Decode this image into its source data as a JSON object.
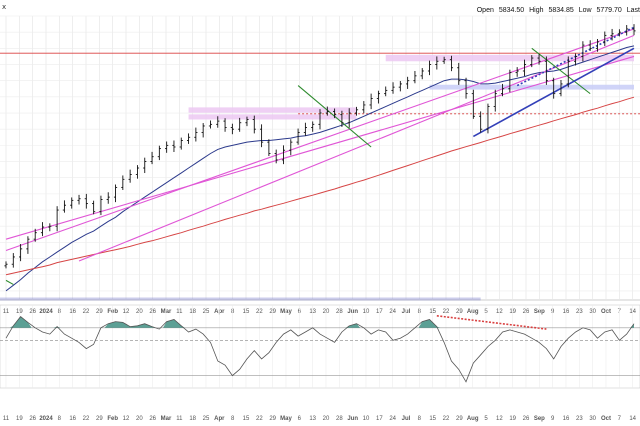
{
  "header": {
    "corner_label": "x",
    "open_label": "Open",
    "open_value": "5834.50",
    "high_label": "High",
    "high_value": "5834.85",
    "low_label": "Low",
    "low_value": "5779.70",
    "last_label": "Last"
  },
  "chart_data": [
    {
      "type": "bar",
      "panel": "price",
      "style": "ohlc",
      "x_range": [
        "2023-11-06",
        "2024-10-10"
      ],
      "y_range": [
        4150,
        5900
      ],
      "grid": true,
      "x_tick_labels": [
        "11",
        "19",
        "26",
        "2024",
        "8",
        "16",
        "22",
        "29",
        "Feb",
        "12",
        "20",
        "26",
        "Mar",
        "11",
        "18",
        "25",
        "Apr",
        "8",
        "15",
        "22",
        "29",
        "May",
        "6",
        "13",
        "20",
        "28",
        "Jun",
        "10",
        "17",
        "24",
        "Jul",
        "8",
        "15",
        "22",
        "29",
        "Aug",
        "5",
        "12",
        "19",
        "26",
        "Sep",
        "9",
        "16",
        "23",
        "30",
        "Oct",
        "7",
        "14"
      ],
      "series": [
        {
          "kind": "price",
          "closes": [
            4365,
            4410,
            4460,
            4520,
            4560,
            4595,
            4600,
            4700,
            4730,
            4760,
            4770,
            4740,
            4690,
            4765,
            4780,
            4840,
            4890,
            4920,
            4960,
            5000,
            5030,
            5080,
            5100,
            5090,
            5130,
            5150,
            5180,
            5220,
            5230,
            5250,
            5210,
            5200,
            5240,
            5260,
            5200,
            5120,
            5050,
            5010,
            5070,
            5120,
            5180,
            5210,
            5230,
            5300,
            5310,
            5290,
            5240,
            5300,
            5320,
            5350,
            5390,
            5420,
            5440,
            5460,
            5480,
            5500,
            5530,
            5560,
            5600,
            5620,
            5630,
            5580,
            5500,
            5420,
            5280,
            5200,
            5340,
            5420,
            5450,
            5550,
            5560,
            5600,
            5640,
            5620,
            5500,
            5420,
            5480,
            5620,
            5650,
            5720,
            5700,
            5740,
            5780,
            5790,
            5800,
            5820,
            5808
          ]
        },
        {
          "kind": "moving-average",
          "values": [
            4200,
            4235,
            4270,
            4310,
            4345,
            4380,
            4410,
            4440,
            4470,
            4500,
            4525,
            4550,
            4570,
            4600,
            4630,
            4655,
            4690,
            4720,
            4750,
            4780,
            4810,
            4840,
            4870,
            4900,
            4930,
            4960,
            4990,
            5020,
            5050,
            5075,
            5090,
            5100,
            5110,
            5120,
            5125,
            5130,
            5130,
            5135,
            5140,
            5145,
            5155,
            5160,
            5170,
            5180,
            5195,
            5210,
            5225,
            5240,
            5260,
            5280,
            5300,
            5320,
            5340,
            5360,
            5380,
            5400,
            5420,
            5440,
            5460,
            5480,
            5500,
            5510,
            5510,
            5505,
            5495,
            5480,
            5480,
            5485,
            5495,
            5505,
            5515,
            5525,
            5540,
            5550,
            5555,
            5560,
            5570,
            5585,
            5600,
            5615,
            5630,
            5645,
            5660,
            5675,
            5690,
            5705,
            5715
          ]
        },
        {
          "kind": "moving-average",
          "values": [
            4300,
            4310,
            4320,
            4330,
            4340,
            4350,
            4360,
            4375,
            4385,
            4395,
            4405,
            4415,
            4425,
            4435,
            4445,
            4455,
            4465,
            4475,
            4488,
            4500,
            4510,
            4522,
            4535,
            4548,
            4560,
            4575,
            4588,
            4600,
            4615,
            4628,
            4642,
            4655,
            4668,
            4680,
            4695,
            4705,
            4718,
            4730,
            4742,
            4755,
            4768,
            4780,
            4792,
            4805,
            4818,
            4830,
            4845,
            4858,
            4872,
            4885,
            4900,
            4915,
            4930,
            4945,
            4960,
            4975,
            4990,
            5005,
            5020,
            5035,
            5050,
            5065,
            5078,
            5092,
            5105,
            5118,
            5132,
            5145,
            5158,
            5172,
            5185,
            5198,
            5212,
            5225,
            5238,
            5252,
            5265,
            5278,
            5290,
            5305,
            5318,
            5330,
            5345,
            5358,
            5370,
            5385,
            5398
          ]
        }
      ],
      "annotations": [
        {
          "kind": "horizontal",
          "value": 5670,
          "style": "solid",
          "color": "#d94040"
        },
        {
          "kind": "horizontal",
          "value": 5295,
          "style": "dashed",
          "color": "#d94040"
        },
        {
          "kind": "horizontal",
          "value": 4150,
          "style": "solid",
          "color": "#6f73c7"
        },
        {
          "kind": "zone",
          "value": [
            5260,
            5292
          ],
          "color": "#ecc8f2"
        },
        {
          "kind": "zone",
          "value": [
            5302,
            5335
          ],
          "color": "#ecc8f2"
        },
        {
          "kind": "zone",
          "value": [
            5445,
            5475
          ],
          "color": "#c8cdf7"
        },
        {
          "kind": "zone",
          "value": [
            5620,
            5660
          ],
          "color": "#ecc8f2"
        },
        {
          "kind": "trendline",
          "from": [
            0,
            4450
          ],
          "to": [
            86,
            5820
          ],
          "color": "#e056d6"
        },
        {
          "kind": "trendline",
          "from": [
            10,
            4385
          ],
          "to": [
            86,
            5780
          ],
          "color": "#e056d6"
        },
        {
          "kind": "trendline",
          "from": [
            0,
            4520
          ],
          "to": [
            86,
            5650
          ],
          "color": "#e056d6"
        },
        {
          "kind": "trendline",
          "from": [
            40,
            5470
          ],
          "to": [
            50,
            5090
          ],
          "color": "#2e8b2e"
        },
        {
          "kind": "trendline",
          "from": [
            72,
            5700
          ],
          "to": [
            80,
            5420
          ],
          "color": "#2e8b2e"
        },
        {
          "kind": "trendline",
          "from": [
            0,
            4265
          ],
          "to": [
            1,
            4240
          ],
          "color": "#2e8b2e"
        },
        {
          "kind": "trendline",
          "from": [
            64,
            5155
          ],
          "to": [
            86,
            5700
          ],
          "color": "#3340b8"
        },
        {
          "kind": "trendline",
          "from": [
            70,
            5470
          ],
          "to": [
            86,
            5830
          ],
          "color": "#3340b8",
          "style": "dotted"
        }
      ]
    },
    {
      "type": "line",
      "panel": "indicator",
      "y_range": [
        -1,
        1
      ],
      "zero_line": 0.15,
      "upper_level": 0.45,
      "lower_level": -0.7,
      "x_tick_labels": [
        "11",
        "19",
        "26",
        "2024",
        "8",
        "16",
        "22",
        "29",
        "Feb",
        "12",
        "20",
        "26",
        "Mar",
        "11",
        "18",
        "25",
        "Apr",
        "8",
        "15",
        "22",
        "29",
        "May",
        "6",
        "13",
        "20",
        "28",
        "Jun",
        "10",
        "17",
        "24",
        "Jul",
        "8",
        "15",
        "22",
        "29",
        "Aug",
        "5",
        "12",
        "19",
        "26",
        "Sep",
        "9",
        "16",
        "23",
        "30",
        "Oct",
        "7",
        "14"
      ],
      "values": [
        0.2,
        0.5,
        0.72,
        0.58,
        0.45,
        0.35,
        0.3,
        0.48,
        0.3,
        0.2,
        0.1,
        -0.05,
        0.05,
        0.45,
        0.55,
        0.6,
        0.58,
        0.48,
        0.5,
        0.55,
        0.48,
        0.42,
        0.6,
        0.65,
        0.5,
        0.35,
        0.42,
        0.3,
        0.1,
        -0.35,
        -0.45,
        -0.7,
        -0.55,
        -0.3,
        -0.1,
        -0.3,
        -0.15,
        0.1,
        0.3,
        0.4,
        0.25,
        0.35,
        0.45,
        0.3,
        0.2,
        0.1,
        0.35,
        0.5,
        0.55,
        0.45,
        0.3,
        0.4,
        0.35,
        0.15,
        0.2,
        0.3,
        0.45,
        0.6,
        0.65,
        0.48,
        0.1,
        -0.35,
        -0.55,
        -0.85,
        -0.4,
        -0.2,
        0.0,
        0.15,
        0.35,
        0.4,
        0.35,
        0.3,
        0.2,
        0.1,
        -0.05,
        -0.3,
        0.0,
        0.2,
        0.35,
        0.45,
        0.4,
        0.2,
        0.35,
        0.4,
        0.15,
        0.3,
        0.55
      ],
      "annotations": [
        {
          "kind": "divergence-line",
          "from": [
            59,
            0.74
          ],
          "to": [
            74,
            0.42
          ],
          "color": "#d94040",
          "style": "dotted"
        }
      ]
    }
  ]
}
